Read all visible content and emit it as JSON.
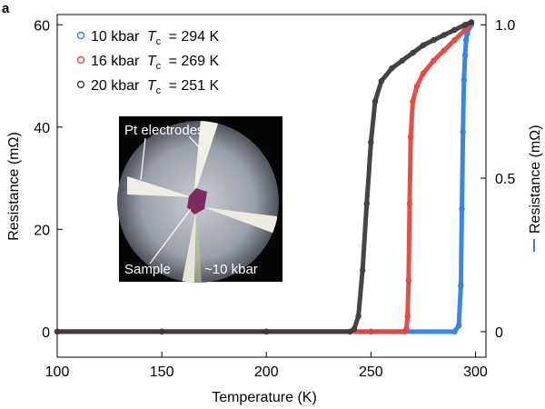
{
  "panel_label": "a",
  "chart_data": {
    "type": "scatter",
    "xlabel": "Temperature (K)",
    "ylabel_left": "Resistance (mΩ)",
    "ylabel_right": "Resistance (mΩ)",
    "xlim": [
      100,
      305
    ],
    "ylim_left": [
      -5,
      62
    ],
    "ylim_right": [
      -0.0833,
      1.0333
    ],
    "xticks": [
      100,
      150,
      200,
      250,
      300
    ],
    "yticks_left": [
      0,
      20,
      40,
      60
    ],
    "yticks_right": [
      0,
      0.5,
      1.0
    ],
    "ytick_labels_right": [
      "0",
      "0.5",
      "1.0"
    ],
    "legend_placement": "top-left",
    "series": [
      {
        "name": "10 kbar Tc = 294 K",
        "legend": {
          "pressure": "10 kbar",
          "symbol": "T",
          "subscript": "c",
          "value": "= 294 K"
        },
        "color": "#2f7fe6",
        "axis": "right",
        "x": [
          100,
          150,
          200,
          250,
          290,
          292,
          293,
          293.5,
          294,
          294.5,
          295,
          295.5,
          296,
          297,
          298
        ],
        "y": [
          0,
          0,
          0,
          0,
          0,
          0.02,
          0.15,
          0.4,
          0.65,
          0.82,
          0.9,
          0.95,
          0.97,
          0.99,
          1.0
        ]
      },
      {
        "name": "16 kbar Tc = 269 K",
        "legend": {
          "pressure": "16 kbar",
          "symbol": "T",
          "subscript": "c",
          "value": "= 269 K"
        },
        "color": "#e8453c",
        "axis": "left",
        "x": [
          100,
          150,
          200,
          250,
          266,
          267,
          267.5,
          268,
          268.5,
          269,
          270,
          272,
          275,
          280,
          285,
          290,
          295,
          298
        ],
        "y": [
          0,
          0,
          0,
          0,
          0,
          0.5,
          3,
          10,
          25,
          38,
          45,
          48,
          50.5,
          53,
          55,
          57,
          59,
          60.5
        ]
      },
      {
        "name": "20 kbar Tc = 251 K",
        "legend": {
          "pressure": "20 kbar",
          "symbol": "T",
          "subscript": "c",
          "value": "= 251 K"
        },
        "color": "#3a3a3a",
        "axis": "left",
        "x": [
          100,
          150,
          200,
          240,
          242,
          244,
          246,
          248,
          250,
          252,
          255,
          260,
          265,
          270,
          275,
          280,
          285,
          290,
          295,
          298
        ],
        "y": [
          0,
          0,
          0,
          0,
          0.5,
          3,
          12,
          25,
          37,
          45,
          49,
          51.5,
          53,
          54.5,
          56,
          57,
          58,
          59,
          60,
          60.5
        ]
      }
    ]
  },
  "inset": {
    "label_electrodes": "Pt electrodes",
    "label_sample": "Sample",
    "label_pressure": "~10 kbar"
  }
}
